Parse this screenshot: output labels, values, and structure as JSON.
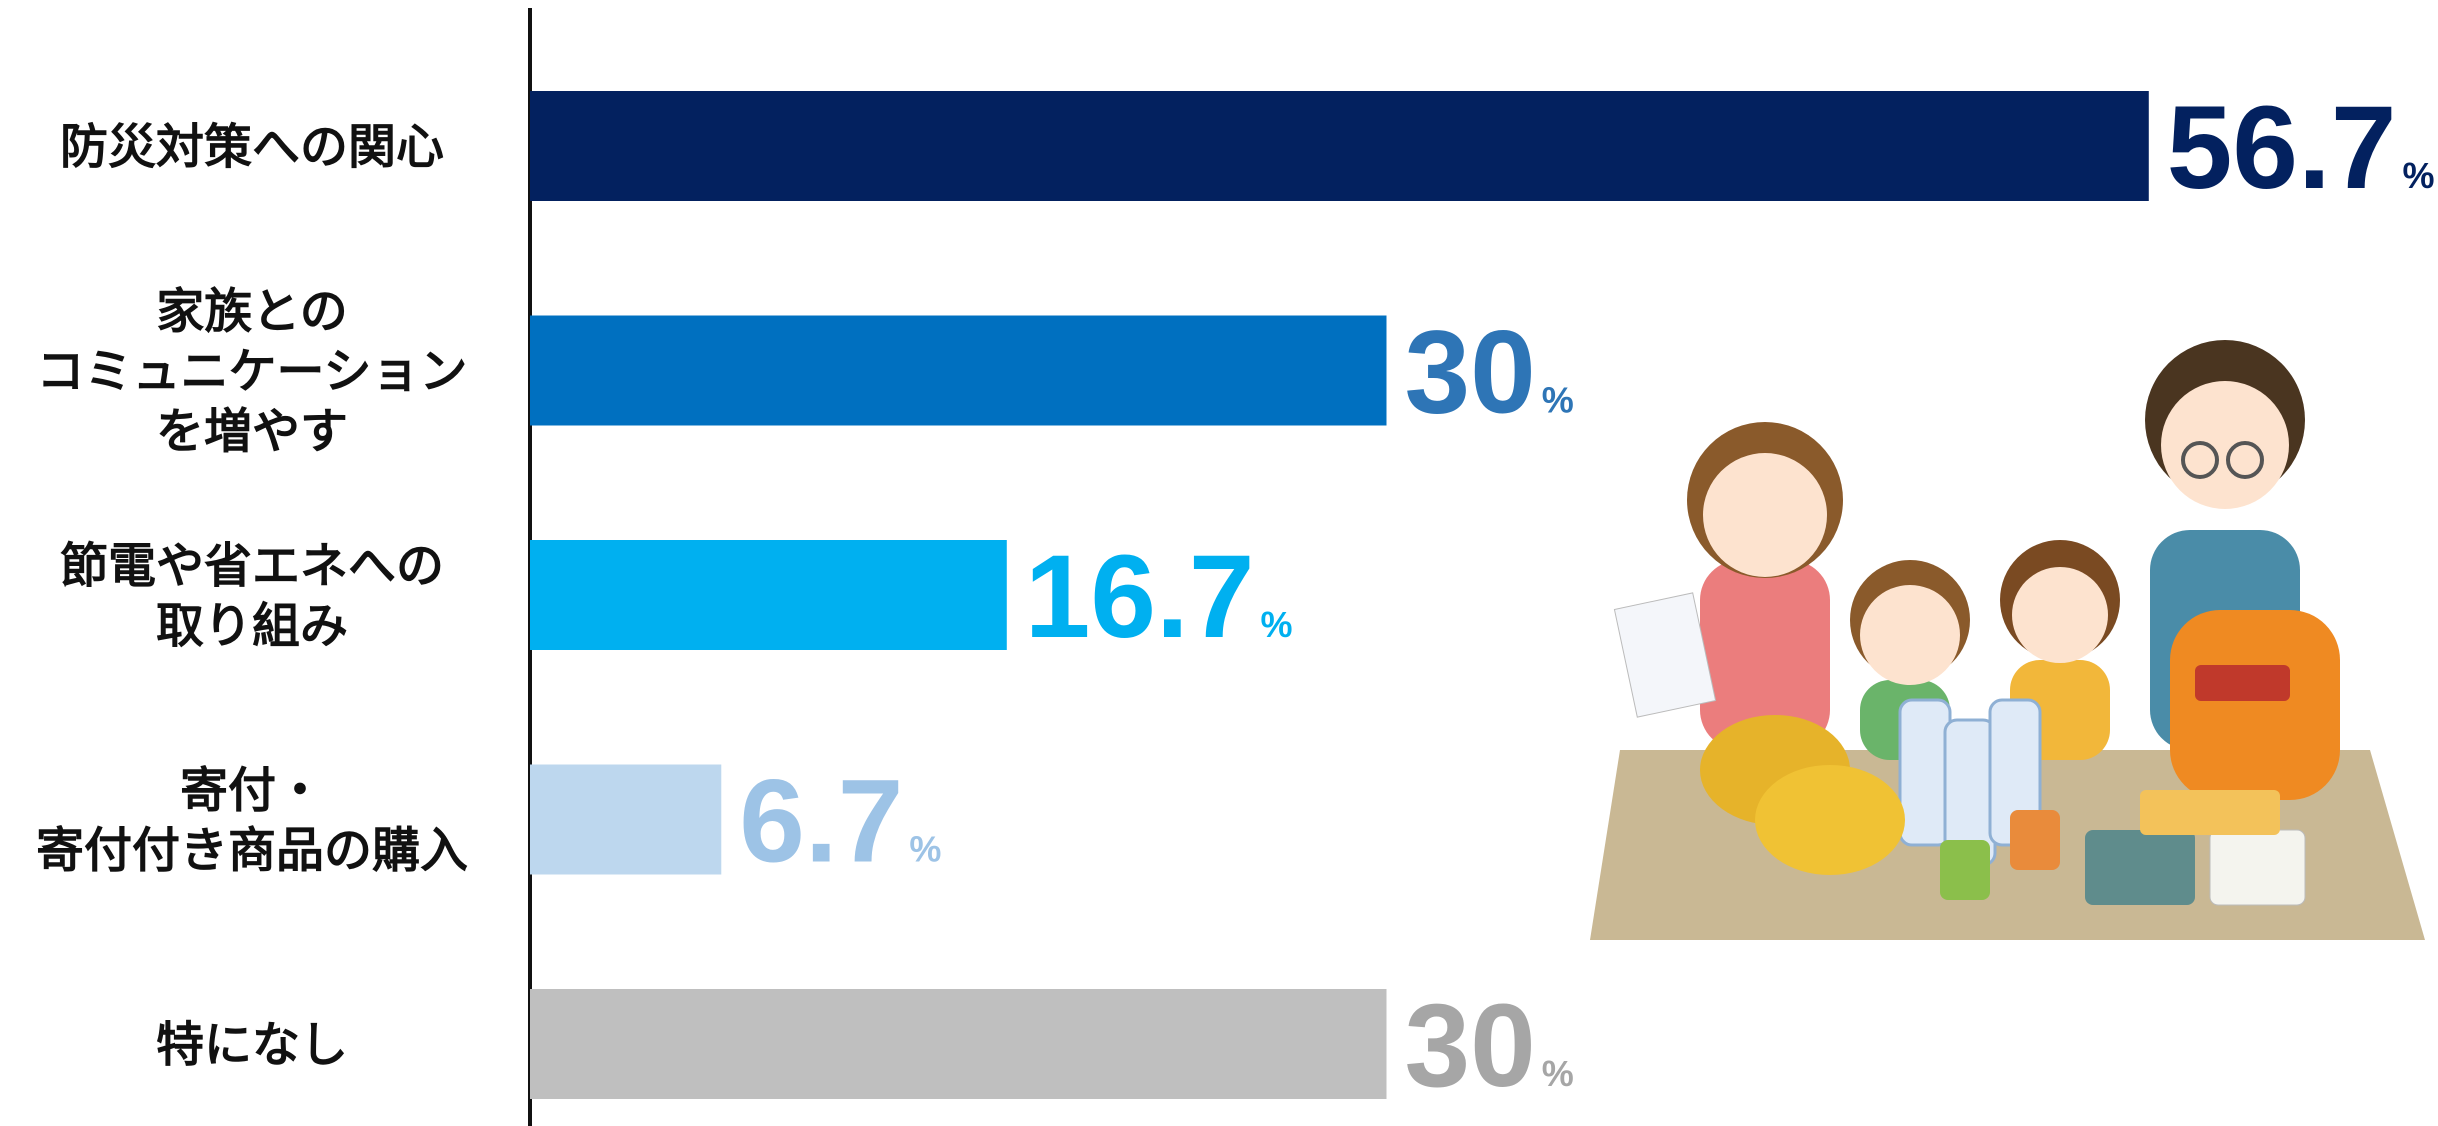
{
  "chart_data": {
    "type": "bar",
    "orientation": "horizontal",
    "categories": [
      "防災対策への関心",
      "家族との\nコミュニケーション\nを増やす",
      "節電や省エネへの\n取り組み",
      "寄付・\n寄付付き商品の購入",
      "特になし"
    ],
    "values": [
      56.7,
      30,
      16.7,
      6.7,
      30
    ],
    "value_labels": [
      "56.7%",
      "30%",
      "16.7%",
      "6.7%",
      "30%"
    ],
    "colors": [
      "#03215f",
      "#0070c0",
      "#00b0f0",
      "#bdd7ee",
      "#bfbfbf"
    ],
    "label_colors": [
      "#03215f",
      "#2e75b6",
      "#00b0f0",
      "#9dc3e6",
      "#a6a6a6"
    ]
  }
}
